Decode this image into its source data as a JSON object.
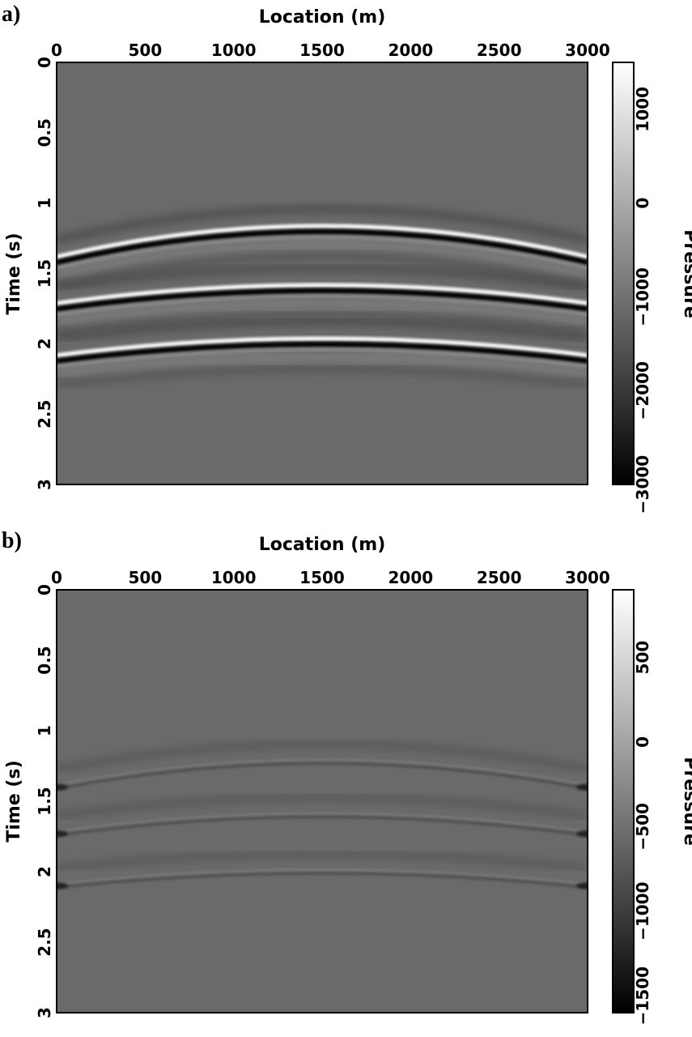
{
  "chart_data": [
    {
      "type": "heatmap",
      "panel_label": "a)",
      "xlabel": "Location (m)",
      "ylabel": "Time (s)",
      "xlim": [
        0,
        3000
      ],
      "ylim": [
        0,
        3
      ],
      "y_inverted": true,
      "x_axis_position": "top",
      "x_ticks": [
        "0",
        "500",
        "1000",
        "1500",
        "2000",
        "2500",
        "3000"
      ],
      "y_ticks": [
        "0",
        "0.5",
        "1",
        "1.5",
        "2",
        "2.5",
        "3"
      ],
      "colormap": "grayscale",
      "colorbar": {
        "label": "Pressure",
        "range": [
          -3000,
          1500
        ],
        "ticks": [
          "1000",
          "0",
          "−1000",
          "−2000",
          "−3000"
        ],
        "tick_values": [
          1000,
          0,
          -1000,
          -2000,
          -3000
        ]
      },
      "events": [
        {
          "apex_location": 1500,
          "apex_time": 1.18,
          "edge_time": 1.4
        },
        {
          "apex_location": 1500,
          "apex_time": 1.6,
          "edge_time": 1.73
        },
        {
          "apex_location": 1500,
          "apex_time": 1.98,
          "edge_time": 2.1
        }
      ]
    },
    {
      "type": "heatmap",
      "panel_label": "b)",
      "xlabel": "Location (m)",
      "ylabel": "Time (s)",
      "xlim": [
        0,
        3000
      ],
      "ylim": [
        0,
        3
      ],
      "y_inverted": true,
      "x_axis_position": "top",
      "x_ticks": [
        "0",
        "500",
        "1000",
        "1500",
        "2000",
        "2500",
        "3000"
      ],
      "y_ticks": [
        "0",
        "0.5",
        "1",
        "1.5",
        "2",
        "2.5",
        "3"
      ],
      "colormap": "grayscale",
      "colorbar": {
        "label": "Pressure",
        "range": [
          -1600,
          900
        ],
        "ticks": [
          "500",
          "0",
          "−500",
          "−1000",
          "−1500"
        ],
        "tick_values": [
          500,
          0,
          -500,
          -1000,
          -1500
        ]
      },
      "events": [
        {
          "apex_location": 1500,
          "apex_time": 1.22,
          "edge_time": 1.4
        },
        {
          "apex_location": 1500,
          "apex_time": 1.6,
          "edge_time": 1.73
        },
        {
          "apex_location": 1500,
          "apex_time": 2.0,
          "edge_time": 2.1
        }
      ]
    }
  ]
}
